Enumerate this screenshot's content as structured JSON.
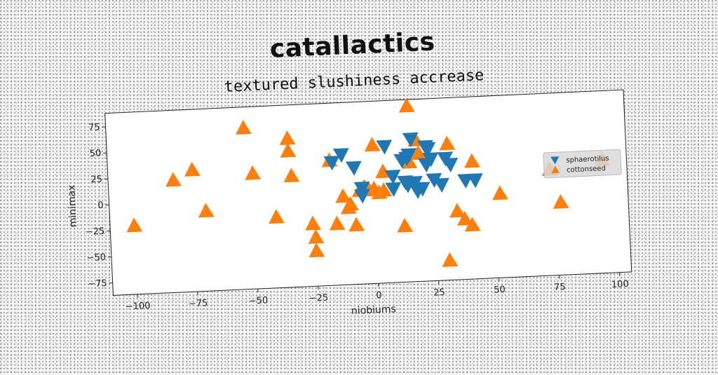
{
  "header": {
    "suptitle": "catallactics",
    "title": "textured slushiness accrease"
  },
  "colors": {
    "sphaerotilus": "#1f77b4",
    "cottonseed": "#ff7f0e"
  },
  "chart_data": {
    "type": "scatter",
    "xlabel": "niobiums",
    "ylabel": "minimax",
    "xlim": [
      -110,
      105
    ],
    "ylim": [
      -87,
      88
    ],
    "xticks": [
      -100,
      -75,
      -50,
      -25,
      0,
      25,
      50,
      75,
      100
    ],
    "yticks": [
      -75,
      -50,
      -25,
      0,
      25,
      50,
      75
    ],
    "xtick_labels": [
      "−100",
      "−75",
      "−50",
      "−25",
      "0",
      "25",
      "50",
      "75",
      "100"
    ],
    "ytick_labels": [
      "−75",
      "−50",
      "−25",
      "0",
      "25",
      "50",
      "75"
    ],
    "grid": false,
    "legend_position": "right",
    "series": [
      {
        "name": "sphaerotilus",
        "marker": "triangle-down",
        "color": "#1f77b4",
        "x": [
          -17,
          -13,
          -8,
          -5,
          5,
          8,
          12,
          13,
          14,
          15,
          16,
          17,
          18,
          20,
          22,
          22,
          23,
          25,
          28,
          30,
          32,
          38,
          42,
          -5,
          8,
          14,
          18,
          24
        ],
        "y": [
          31,
          38,
          25,
          5,
          44,
          15,
          30,
          9,
          32,
          35,
          50,
          8,
          0,
          2,
          25,
          42,
          40,
          10,
          5,
          30,
          24,
          8,
          8,
          -2,
          3,
          6,
          2,
          30
        ]
      },
      {
        "name": "cottonseed",
        "marker": "triangle-up",
        "color": "#ff7f0e",
        "x": [
          -100,
          -83,
          -75,
          -70,
          -53,
          -50,
          -41,
          -35,
          -34,
          -35,
          -25,
          -25,
          -26,
          -18,
          -16,
          -13,
          -11,
          -10,
          -8,
          -6,
          -4,
          -2,
          0,
          0,
          2,
          4,
          4,
          12,
          15,
          15,
          18,
          19,
          30,
          31,
          34,
          37,
          40,
          41,
          52,
          73,
          77,
          95
        ],
        "y": [
          -21,
          21,
          30,
          -10,
          68,
          24,
          -19,
          56,
          20,
          44,
          -53,
          -40,
          -27,
          33,
          -28,
          -2,
          -13,
          -10,
          -30,
          3,
          6,
          3,
          4,
          46,
          0,
          20,
          2,
          -33,
          82,
          28,
          49,
          36,
          -68,
          44,
          -21,
          -29,
          -35,
          26,
          -6,
          15,
          -17,
          22
        ]
      }
    ]
  }
}
